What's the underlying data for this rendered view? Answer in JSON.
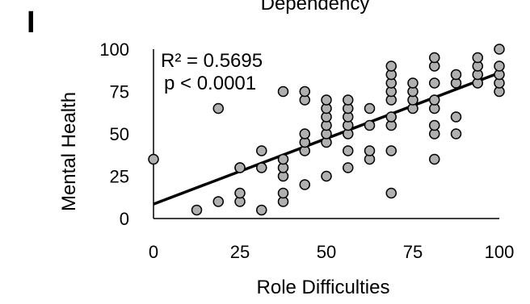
{
  "panel_label": "I",
  "chart_data": {
    "type": "scatter",
    "title": "Dependency",
    "xlabel": "Role Difficulties",
    "ylabel": "Mental Health",
    "xlim": [
      0,
      100
    ],
    "ylim": [
      0,
      100
    ],
    "xticks": [
      "0",
      "25",
      "50",
      "75",
      "100"
    ],
    "yticks": [
      "0",
      "25",
      "50",
      "75",
      "100"
    ],
    "grid": false,
    "legend": "none",
    "annotations": [
      "R² = 0.5695",
      "p < 0.0001"
    ],
    "marker_fill": "#b0b0b0",
    "marker_edge": "#000000",
    "trendline": {
      "intercept": 8.5,
      "slope": 0.775
    },
    "points": [
      [
        0,
        35
      ],
      [
        12.5,
        5
      ],
      [
        18.75,
        10
      ],
      [
        18.75,
        65
      ],
      [
        25,
        10
      ],
      [
        25,
        15
      ],
      [
        25,
        30
      ],
      [
        25,
        30
      ],
      [
        31.25,
        5
      ],
      [
        31.25,
        30
      ],
      [
        31.25,
        40
      ],
      [
        37.5,
        10
      ],
      [
        37.5,
        15
      ],
      [
        37.5,
        25
      ],
      [
        37.5,
        30
      ],
      [
        37.5,
        35
      ],
      [
        37.5,
        75
      ],
      [
        43.75,
        20
      ],
      [
        43.75,
        40
      ],
      [
        43.75,
        45
      ],
      [
        43.75,
        50
      ],
      [
        43.75,
        70
      ],
      [
        43.75,
        75
      ],
      [
        50,
        25
      ],
      [
        50,
        45
      ],
      [
        50,
        50
      ],
      [
        50,
        55
      ],
      [
        50,
        60
      ],
      [
        50,
        65
      ],
      [
        50,
        70
      ],
      [
        56.25,
        30
      ],
      [
        56.25,
        40
      ],
      [
        56.25,
        50
      ],
      [
        56.25,
        55
      ],
      [
        56.25,
        60
      ],
      [
        56.25,
        65
      ],
      [
        56.25,
        70
      ],
      [
        62.5,
        35
      ],
      [
        62.5,
        40
      ],
      [
        62.5,
        55
      ],
      [
        62.5,
        65
      ],
      [
        68.75,
        15
      ],
      [
        68.75,
        40
      ],
      [
        68.75,
        55
      ],
      [
        68.75,
        60
      ],
      [
        68.75,
        70
      ],
      [
        68.75,
        75
      ],
      [
        68.75,
        80
      ],
      [
        68.75,
        85
      ],
      [
        68.75,
        90
      ],
      [
        75,
        65
      ],
      [
        75,
        70
      ],
      [
        75,
        75
      ],
      [
        75,
        80
      ],
      [
        81.25,
        35
      ],
      [
        81.25,
        50
      ],
      [
        81.25,
        55
      ],
      [
        81.25,
        65
      ],
      [
        81.25,
        70
      ],
      [
        81.25,
        80
      ],
      [
        81.25,
        90
      ],
      [
        81.25,
        95
      ],
      [
        87.5,
        50
      ],
      [
        87.5,
        60
      ],
      [
        87.5,
        80
      ],
      [
        87.5,
        85
      ],
      [
        93.75,
        80
      ],
      [
        93.75,
        85
      ],
      [
        93.75,
        90
      ],
      [
        93.75,
        95
      ],
      [
        100,
        75
      ],
      [
        100,
        80
      ],
      [
        100,
        85
      ],
      [
        100,
        90
      ],
      [
        100,
        100
      ]
    ]
  }
}
